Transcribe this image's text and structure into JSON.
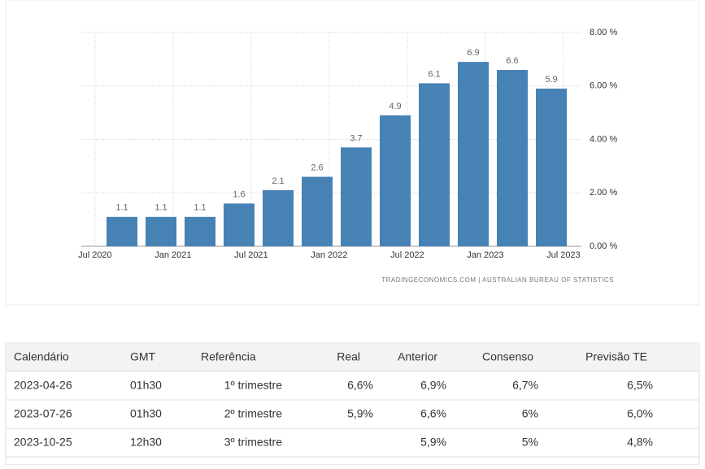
{
  "chart_data": {
    "type": "bar",
    "categories": [
      null,
      null,
      null,
      null,
      null,
      null,
      null,
      null,
      null,
      null,
      null,
      null
    ],
    "values": [
      1.1,
      1.1,
      1.1,
      1.6,
      2.1,
      2.6,
      3.7,
      4.9,
      6.1,
      6.9,
      6.6,
      5.9
    ],
    "x_labels": [
      "Jul 2020",
      "Jan 2021",
      "Jul 2021",
      "Jan 2022",
      "Jul 2022",
      "Jan 2023",
      "Jul 2023"
    ],
    "color": "#4682b4",
    "ylim": [
      0,
      8
    ],
    "yticks": [
      {
        "value": 0,
        "label": "0.00 %"
      },
      {
        "value": 2,
        "label": "2.00 %"
      },
      {
        "value": 4,
        "label": "4.00 %"
      },
      {
        "value": 6,
        "label": "6.00 %"
      },
      {
        "value": 8,
        "label": "8.00 %"
      }
    ],
    "grid": true,
    "source": "TRADINGECONOMICS.COM  |  AUSTRALIAN BUREAU OF STATISTICS"
  },
  "table": {
    "header": [
      "Calendário",
      "GMT",
      "Referência",
      "Real",
      "Anterior",
      "Consenso",
      "Previsão TE"
    ],
    "rows": [
      [
        "2023-04-26",
        "01h30",
        "1º trimestre",
        "6,6%",
        "6,9%",
        "6,7%",
        "6,5%"
      ],
      [
        "2023-07-26",
        "01h30",
        "2º trimestre",
        "5,9%",
        "6,6%",
        "6%",
        "6,0%"
      ],
      [
        "2023-10-25",
        "12h30",
        "3º trimestre",
        null,
        "5,9%",
        "5%",
        "4,8%"
      ]
    ]
  }
}
